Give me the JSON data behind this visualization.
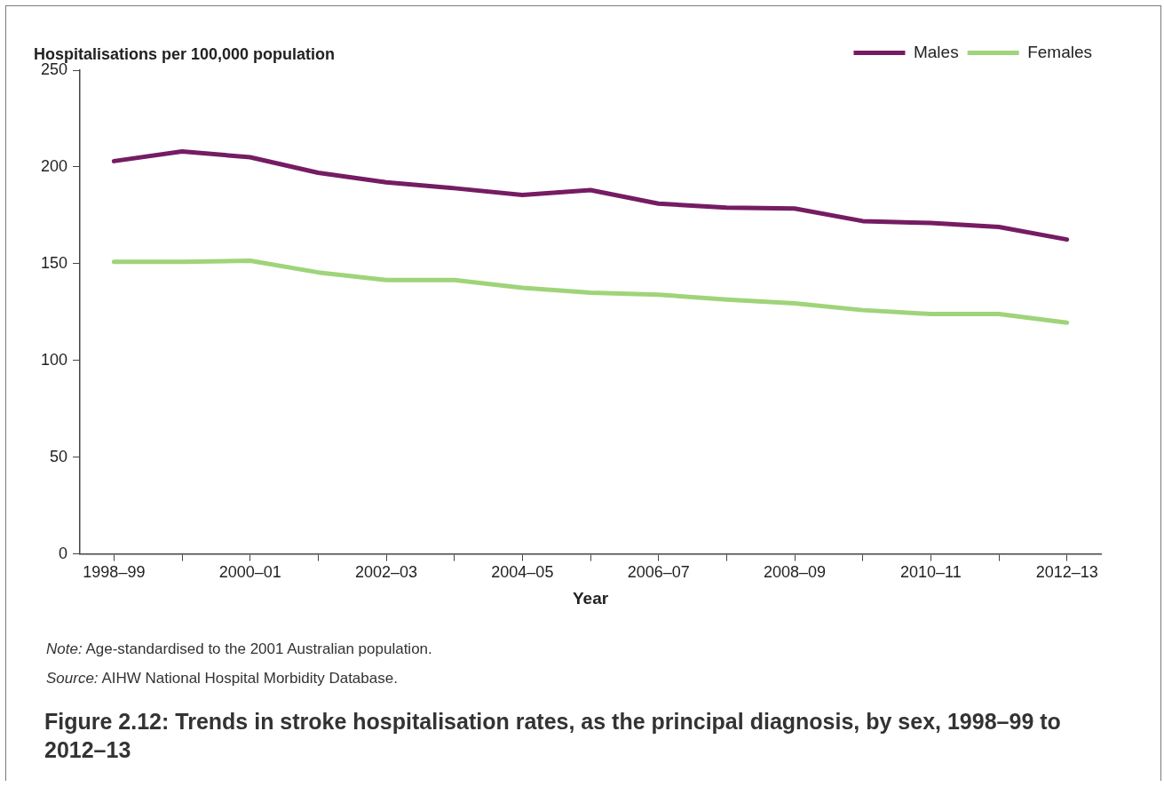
{
  "chart_data": {
    "type": "line",
    "title": "Figure 2.12: Trends in stroke hospitalisation rates, as the principal diagnosis, by sex, 1998–99 to 2012–13",
    "ylabel": "Hospitalisations per 100,000 population",
    "xlabel": "Year",
    "categories": [
      "1998–99",
      null,
      "2000–01",
      null,
      "2002–03",
      null,
      "2004–05",
      null,
      "2006–07",
      null,
      "2008–09",
      null,
      "2010–11",
      null,
      "2012–13"
    ],
    "series": [
      {
        "name": "Males",
        "color": "#751c63",
        "values": [
          203,
          208,
          205,
          197,
          192,
          189,
          185.5,
          188,
          181,
          179,
          178.5,
          172,
          171,
          169,
          162.5
        ]
      },
      {
        "name": "Females",
        "color": "#9fd47a",
        "values": [
          151,
          151,
          151.5,
          145.5,
          141.5,
          141.5,
          137.5,
          135,
          134,
          131.5,
          129.5,
          126,
          124,
          124,
          119.5
        ]
      }
    ],
    "ylim": [
      0,
      250
    ],
    "yticks": [
      0,
      50,
      100,
      150,
      200,
      250
    ],
    "grid": false,
    "legend": "top right",
    "marker": "none",
    "line_style": "solid",
    "annotations": [
      "Note: Age-standardised to the 2001 Australian population.",
      "Source: AIHW National Hospital Morbidity Database."
    ]
  }
}
